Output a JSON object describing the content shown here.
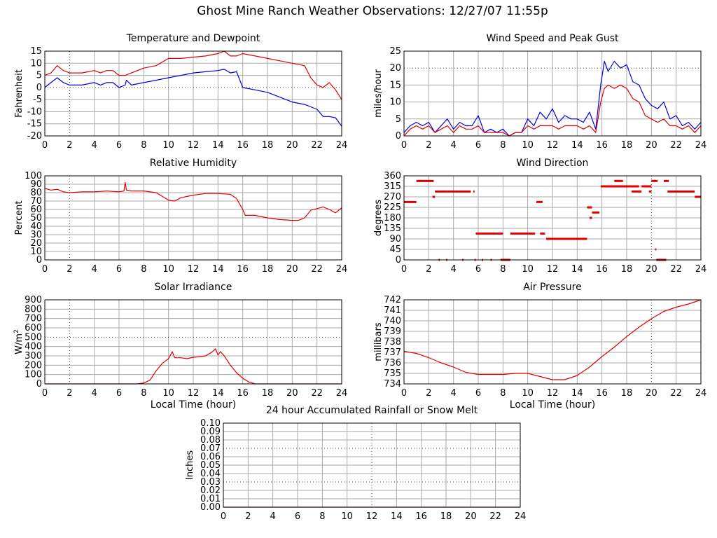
{
  "page": {
    "title": "Ghost Mine Ranch Weather Observations: 12/27/07 11:55p"
  },
  "colors": {
    "red": "#e00000",
    "blue": "#0000dd",
    "grid": "#aaaaaa",
    "dotted": "#444444"
  },
  "chart_data": [
    {
      "id": "temp",
      "type": "line",
      "title": "Temperature and Dewpoint",
      "xlabel": "",
      "ylabel": "Fahrenheit",
      "xlim": [
        0,
        24
      ],
      "ylim": [
        -20,
        15
      ],
      "yticks": [
        -20,
        -15,
        -10,
        -5,
        0,
        5,
        10,
        15
      ],
      "xticks": [
        0,
        2,
        4,
        6,
        8,
        10,
        12,
        14,
        16,
        18,
        20,
        22,
        24
      ],
      "dotted_y": [
        0
      ],
      "dotted_x": [
        2
      ],
      "series": [
        {
          "color": "red",
          "x": [
            0,
            0.5,
            1,
            1.5,
            2,
            3,
            4,
            4.5,
            5,
            5.5,
            6,
            6.5,
            7,
            8,
            9,
            10,
            11,
            12,
            13,
            14,
            14.5,
            15,
            15.5,
            16,
            17,
            18,
            19,
            20,
            21,
            21.5,
            22,
            22.5,
            23,
            23.5,
            24
          ],
          "y": [
            5,
            6,
            9,
            7,
            6,
            6,
            7,
            6,
            7,
            7,
            5,
            5,
            6,
            8,
            9,
            12,
            12,
            12.5,
            13,
            14,
            15,
            13,
            13,
            14,
            13,
            12,
            11,
            10,
            9,
            4,
            1,
            0,
            2,
            -1,
            -5
          ]
        },
        {
          "color": "blue",
          "x": [
            0,
            0.5,
            1,
            1.5,
            2,
            3,
            4,
            4.5,
            5,
            5.5,
            6,
            6.5,
            6.6,
            7,
            8,
            9,
            10,
            11,
            12,
            13,
            14,
            14.5,
            15,
            15.5,
            16,
            16.5,
            17,
            18,
            19,
            20,
            21,
            21.5,
            22,
            22.5,
            23,
            23.5,
            24
          ],
          "y": [
            0,
            2,
            4,
            2,
            1,
            1,
            2,
            1,
            2,
            2,
            0,
            1,
            3,
            1,
            2,
            3,
            4,
            5,
            6,
            6.5,
            7,
            7.5,
            6,
            6.5,
            0,
            -0.5,
            -1,
            -2,
            -4,
            -6,
            -7,
            -8,
            -9,
            -12,
            -12,
            -12.5,
            -16
          ]
        }
      ]
    },
    {
      "id": "wind",
      "type": "line",
      "title": "Wind Speed and Peak Gust",
      "xlabel": "",
      "ylabel": "miles/hour",
      "xlim": [
        0,
        24
      ],
      "ylim": [
        0,
        25
      ],
      "yticks": [
        0,
        5,
        10,
        15,
        20,
        25
      ],
      "xticks": [
        0,
        2,
        4,
        6,
        8,
        10,
        12,
        14,
        16,
        18,
        20,
        22,
        24
      ],
      "dotted_y": [
        20
      ],
      "dotted_x": [],
      "series": [
        {
          "color": "blue",
          "x": [
            0,
            0.5,
            1,
            1.5,
            2,
            2.5,
            3,
            3.5,
            4,
            4.5,
            5,
            5.5,
            6,
            6.5,
            7,
            7.5,
            8,
            8.5,
            9,
            9.5,
            10,
            10.5,
            11,
            11.5,
            12,
            12.5,
            13,
            13.5,
            14,
            14.5,
            15,
            15.5,
            15.9,
            16.2,
            16.5,
            17,
            17.5,
            18,
            18.5,
            19,
            19.5,
            20,
            20.5,
            21,
            21.5,
            22,
            22.5,
            23,
            23.5,
            24
          ],
          "y": [
            1,
            3,
            4,
            3,
            4,
            1,
            3,
            5,
            2,
            4,
            3,
            3,
            6,
            1,
            2,
            1,
            2,
            0,
            1,
            1,
            5,
            3,
            7,
            5,
            8,
            4,
            6,
            5,
            5,
            4,
            7,
            2,
            15,
            22,
            19,
            22,
            20,
            21,
            16,
            15,
            11,
            9,
            8,
            10,
            5,
            6,
            3,
            4,
            2,
            4
          ]
        },
        {
          "color": "red",
          "x": [
            0,
            0.5,
            1,
            1.5,
            2,
            2.5,
            3,
            3.5,
            4,
            4.5,
            5,
            5.5,
            6,
            6.5,
            7,
            7.5,
            8,
            8.5,
            9,
            9.5,
            10,
            10.5,
            11,
            11.5,
            12,
            12.5,
            13,
            13.5,
            14,
            14.5,
            15,
            15.5,
            15.9,
            16.2,
            16.5,
            17,
            17.5,
            18,
            18.5,
            19,
            19.5,
            20,
            20.5,
            21,
            21.5,
            22,
            22.5,
            23,
            23.5,
            24
          ],
          "y": [
            0,
            2,
            3,
            2,
            3,
            1,
            2,
            3,
            1,
            3,
            2,
            2,
            3,
            1,
            1,
            1,
            1,
            0,
            1,
            1,
            3,
            2,
            3,
            3,
            3,
            2,
            3,
            3,
            3,
            2,
            3,
            1,
            10,
            14,
            15,
            14,
            15,
            14,
            11,
            10,
            6,
            5,
            4,
            5,
            3,
            3,
            2,
            3,
            1,
            3
          ]
        }
      ]
    },
    {
      "id": "rh",
      "type": "line",
      "title": "Relative Humidity",
      "xlabel": "",
      "ylabel": "Percent",
      "xlim": [
        0,
        24
      ],
      "ylim": [
        0,
        100
      ],
      "yticks": [
        0,
        10,
        20,
        30,
        40,
        50,
        60,
        70,
        80,
        90,
        100
      ],
      "xticks": [
        0,
        2,
        4,
        6,
        8,
        10,
        12,
        14,
        16,
        18,
        20,
        22,
        24
      ],
      "dotted_y": [],
      "dotted_x": [
        2
      ],
      "series": [
        {
          "color": "red",
          "x": [
            0,
            0.5,
            1,
            1.5,
            2,
            3,
            4,
            5,
            6,
            6.4,
            6.5,
            6.6,
            7,
            8,
            9,
            10,
            10.5,
            11,
            12,
            13,
            14,
            15,
            15.5,
            16,
            16.2,
            17,
            18,
            19,
            20,
            20.5,
            21,
            21.5,
            22,
            22.5,
            23,
            23.5,
            24
          ],
          "y": [
            85,
            83,
            84,
            81,
            80,
            81,
            81,
            82,
            81,
            82,
            92,
            83,
            82,
            82,
            80,
            71,
            70,
            74,
            77,
            79,
            79,
            78,
            73,
            60,
            53,
            53,
            50,
            48,
            47,
            47,
            50,
            59,
            61,
            63,
            60,
            56,
            62
          ]
        }
      ]
    },
    {
      "id": "dir",
      "type": "scatter",
      "title": "Wind Direction",
      "xlabel": "",
      "ylabel": "degrees",
      "xlim": [
        0,
        24
      ],
      "ylim": [
        0,
        360
      ],
      "yticks": [
        0,
        45,
        90,
        135,
        180,
        225,
        270,
        315,
        360
      ],
      "xticks": [
        0,
        2,
        4,
        6,
        8,
        10,
        12,
        14,
        16,
        18,
        20,
        22,
        24
      ],
      "dotted_y": [],
      "dotted_x": [
        20
      ],
      "segments": [
        [
          0,
          1,
          248
        ],
        [
          1,
          2.4,
          338
        ],
        [
          2.3,
          2.5,
          270
        ],
        [
          2.5,
          3.5,
          293
        ],
        [
          3.5,
          5.4,
          293
        ],
        [
          5.6,
          5.7,
          293
        ],
        [
          5.8,
          8,
          113
        ],
        [
          8.6,
          10.6,
          113
        ],
        [
          11,
          11.4,
          113
        ],
        [
          11.5,
          14.8,
          90
        ],
        [
          10.7,
          11.2,
          248
        ],
        [
          14.8,
          15.2,
          225
        ],
        [
          15.0,
          15.2,
          180
        ],
        [
          15.2,
          15.8,
          203
        ],
        [
          15.9,
          17,
          315
        ],
        [
          17,
          17.5,
          338
        ],
        [
          17.5,
          17.7,
          338
        ],
        [
          16.8,
          19,
          315
        ],
        [
          18.4,
          19.2,
          293
        ],
        [
          19.2,
          20,
          315
        ],
        [
          19.8,
          20,
          293
        ],
        [
          20,
          20.5,
          338
        ],
        [
          20.3,
          20.4,
          45
        ],
        [
          20.4,
          21.2,
          0
        ],
        [
          21,
          21.4,
          338
        ],
        [
          21.3,
          23.5,
          293
        ],
        [
          23.5,
          24,
          270
        ],
        [
          2.8,
          2.9,
          0
        ],
        [
          3.4,
          3.5,
          0
        ],
        [
          4.7,
          4.8,
          0
        ],
        [
          5.7,
          5.8,
          0
        ],
        [
          6.3,
          6.4,
          0
        ],
        [
          7.0,
          7.1,
          0
        ],
        [
          7.8,
          8.6,
          0
        ]
      ]
    },
    {
      "id": "solar",
      "type": "line",
      "title": "Solar Irradiance",
      "xlabel": "Local Time (hour)",
      "ylabel": "W/m2",
      "xlim": [
        0,
        24
      ],
      "ylim": [
        0,
        900
      ],
      "yticks": [
        0,
        100,
        200,
        300,
        400,
        500,
        600,
        700,
        800,
        900
      ],
      "xticks": [
        0,
        2,
        4,
        6,
        8,
        10,
        12,
        14,
        16,
        18,
        20,
        22,
        24
      ],
      "dotted_y": [
        500
      ],
      "dotted_x": [
        2
      ],
      "series": [
        {
          "color": "red",
          "x": [
            0,
            7.5,
            8,
            8.5,
            9,
            9.5,
            10,
            10.3,
            10.5,
            11,
            11.5,
            12,
            12.5,
            13,
            13.5,
            13.8,
            14,
            14.2,
            14.5,
            15,
            15.5,
            16,
            16.5,
            17,
            24
          ],
          "y": [
            0,
            0,
            10,
            40,
            140,
            220,
            270,
            345,
            280,
            280,
            270,
            285,
            290,
            300,
            340,
            375,
            310,
            345,
            300,
            200,
            120,
            60,
            20,
            0,
            0
          ]
        }
      ]
    },
    {
      "id": "pressure",
      "type": "line",
      "title": "Air Pressure",
      "xlabel": "Local Time (hour)",
      "ylabel": "millibars",
      "xlim": [
        0,
        24
      ],
      "ylim": [
        734,
        742
      ],
      "yticks": [
        734,
        735,
        736,
        737,
        738,
        739,
        740,
        741,
        742
      ],
      "xticks": [
        0,
        2,
        4,
        6,
        8,
        10,
        12,
        14,
        16,
        18,
        20,
        22,
        24
      ],
      "dotted_y": [],
      "dotted_x": [
        20
      ],
      "series": [
        {
          "color": "red",
          "x": [
            0,
            1,
            2,
            3,
            4,
            5,
            6,
            7,
            8,
            9,
            10,
            11,
            12,
            13,
            14,
            15,
            16,
            17,
            18,
            19,
            20,
            21,
            22,
            23,
            24
          ],
          "y": [
            737.1,
            736.9,
            736.5,
            736.0,
            735.6,
            735.1,
            734.9,
            734.9,
            734.9,
            735.0,
            735.0,
            734.7,
            734.4,
            734.4,
            734.8,
            735.6,
            736.6,
            737.5,
            738.5,
            739.4,
            740.2,
            740.9,
            741.3,
            741.6,
            742.0
          ]
        }
      ]
    },
    {
      "id": "rain",
      "type": "line",
      "title": "24 hour Accumulated Rainfall or Snow Melt",
      "xlabel": "",
      "ylabel": "Inches",
      "xlim": [
        0,
        24
      ],
      "ylim": [
        0,
        0.1
      ],
      "yticks": [
        0.0,
        0.01,
        0.02,
        0.03,
        0.04,
        0.05,
        0.06,
        0.07,
        0.08,
        0.09,
        0.1
      ],
      "ytick_labels": [
        "0.00",
        "0.01",
        "0.02",
        "0.03",
        "0.04",
        "0.05",
        "0.06",
        "0.07",
        "0.08",
        "0.09",
        "0.10"
      ],
      "xticks": [
        0,
        2,
        4,
        6,
        8,
        10,
        12,
        14,
        16,
        18,
        20,
        22,
        24
      ],
      "dotted_y": [
        0.03,
        0.07
      ],
      "dotted_x": [
        12
      ],
      "series": [
        {
          "color": "red",
          "x": [
            0,
            24
          ],
          "y": [
            0,
            0
          ]
        }
      ]
    }
  ]
}
